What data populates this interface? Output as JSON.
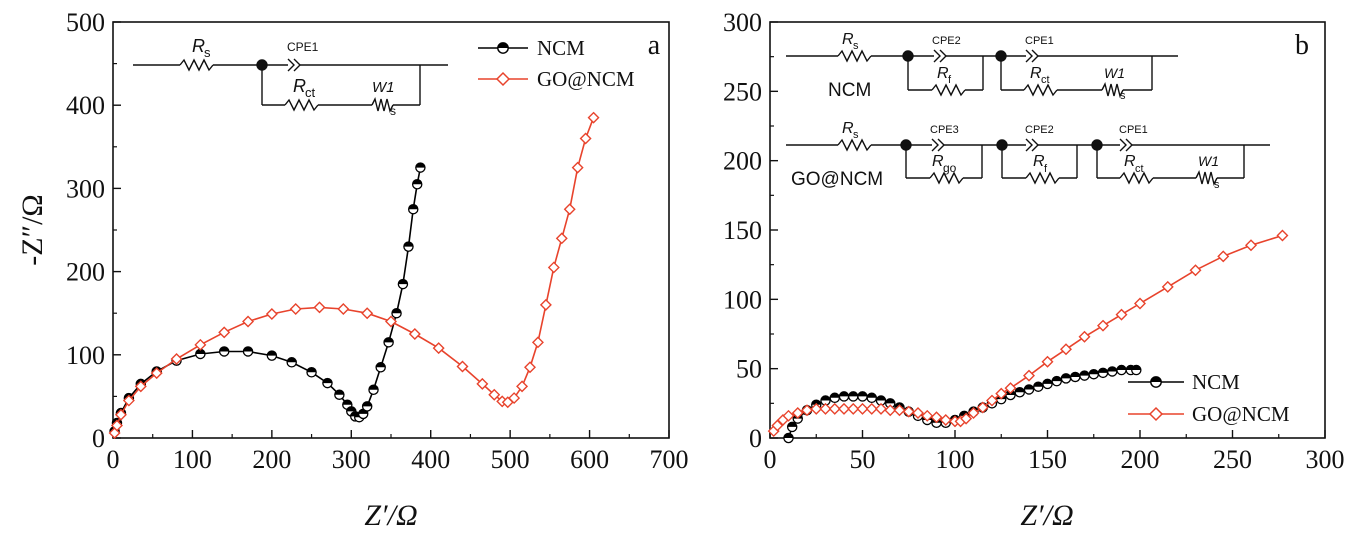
{
  "chart_data": [
    {
      "type": "scatter",
      "panel_label": "a",
      "xlabel": "Z′/Ω",
      "ylabel": "-Z″/Ω",
      "xlim": [
        0,
        700
      ],
      "ylim": [
        0,
        500
      ],
      "xticks": [
        "0",
        "100",
        "200",
        "300",
        "400",
        "500",
        "600",
        "700"
      ],
      "yticks": [
        "0",
        "100",
        "200",
        "300",
        "400",
        "500"
      ],
      "legend_position": "top-right",
      "series": [
        {
          "name": "NCM",
          "color": "#000000",
          "marker": "half-filled-circle",
          "x": [
            2,
            5,
            10,
            20,
            35,
            55,
            80,
            110,
            140,
            170,
            200,
            225,
            250,
            270,
            285,
            295,
            300,
            305,
            310,
            315,
            320,
            328,
            337,
            347,
            357,
            365,
            372,
            378,
            383,
            387
          ],
          "y": [
            8,
            18,
            30,
            48,
            65,
            80,
            93,
            101,
            104,
            104,
            99,
            91,
            79,
            66,
            52,
            40,
            32,
            26,
            25,
            29,
            38,
            58,
            85,
            115,
            150,
            185,
            230,
            275,
            305,
            325
          ]
        },
        {
          "name": "GO@NCM",
          "color": "#e8432c",
          "marker": "open-diamond",
          "x": [
            2,
            5,
            10,
            20,
            35,
            55,
            80,
            110,
            140,
            170,
            200,
            230,
            260,
            290,
            320,
            350,
            380,
            410,
            440,
            465,
            480,
            490,
            497,
            505,
            515,
            525,
            535,
            545,
            555,
            565,
            575,
            585,
            595,
            605
          ],
          "y": [
            6,
            15,
            28,
            45,
            62,
            78,
            95,
            112,
            127,
            140,
            149,
            155,
            157,
            155,
            150,
            140,
            125,
            108,
            86,
            65,
            52,
            44,
            43,
            48,
            62,
            85,
            115,
            160,
            205,
            240,
            275,
            325,
            360,
            385
          ]
        }
      ],
      "circuit": {
        "labels": [
          "R",
          "s",
          "CPE1",
          "R",
          "ct",
          "W1",
          "s"
        ]
      }
    },
    {
      "type": "scatter",
      "panel_label": "b",
      "xlabel": "Z′/Ω",
      "ylabel": "",
      "xlim": [
        0,
        300
      ],
      "ylim": [
        0,
        300
      ],
      "xticks": [
        "0",
        "50",
        "100",
        "150",
        "200",
        "250",
        "300"
      ],
      "yticks": [
        "0",
        "50",
        "100",
        "150",
        "200",
        "250",
        "300"
      ],
      "legend_position": "bottom-right",
      "series": [
        {
          "name": "NCM",
          "color": "#000000",
          "marker": "half-filled-circle",
          "x": [
            10,
            12,
            15,
            20,
            25,
            30,
            35,
            40,
            45,
            50,
            55,
            60,
            65,
            70,
            75,
            80,
            85,
            90,
            95,
            100,
            105,
            110,
            115,
            120,
            125,
            130,
            135,
            140,
            145,
            150,
            155,
            160,
            165,
            170,
            175,
            180,
            185,
            190,
            195,
            198
          ],
          "y": [
            0,
            8,
            14,
            20,
            24,
            27,
            29,
            30,
            30,
            30,
            29,
            27,
            25,
            22,
            19,
            16,
            13,
            11,
            11,
            13,
            16,
            19,
            22,
            25,
            28,
            31,
            33,
            35,
            37,
            39,
            41,
            43,
            44,
            45,
            46,
            47,
            48,
            49,
            49,
            49
          ]
        },
        {
          "name": "GO@NCM",
          "color": "#e8432c",
          "marker": "open-diamond",
          "x": [
            2,
            4,
            7,
            10,
            15,
            20,
            25,
            30,
            35,
            40,
            45,
            50,
            55,
            60,
            65,
            70,
            75,
            80,
            85,
            90,
            95,
            100,
            103,
            106,
            110,
            115,
            120,
            125,
            130,
            140,
            150,
            160,
            170,
            180,
            190,
            200,
            215,
            230,
            245,
            260,
            277
          ],
          "y": [
            5,
            9,
            13,
            16,
            18,
            20,
            21,
            21,
            21,
            21,
            21,
            21,
            21,
            21,
            20,
            20,
            19,
            18,
            16,
            15,
            13,
            12,
            12,
            14,
            18,
            22,
            27,
            32,
            36,
            45,
            55,
            64,
            73,
            81,
            89,
            97,
            109,
            121,
            131,
            139,
            146
          ]
        }
      ],
      "circuits": [
        {
          "name": "NCM",
          "labels": [
            "R",
            "s",
            "CPE2",
            "R",
            "f",
            "CPE1",
            "R",
            "ct",
            "W1",
            "s"
          ]
        },
        {
          "name": "GO@NCM",
          "labels": [
            "R",
            "s",
            "CPE3",
            "R",
            "go",
            "CPE2",
            "R",
            "f",
            "CPE1",
            "R",
            "ct",
            "W1",
            "s"
          ]
        }
      ]
    }
  ]
}
